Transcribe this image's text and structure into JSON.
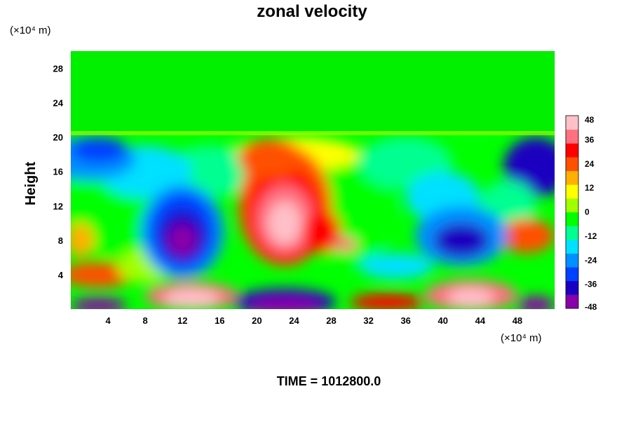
{
  "chart_data": {
    "type": "heatmap",
    "title": "zonal velocity",
    "ylabel": "Height",
    "x_unit_label": "(×10⁴ m)",
    "y_unit_label": "(×10⁴ m)",
    "footer": "TIME = 1012800.0",
    "xlim": [
      0,
      52
    ],
    "ylim": [
      0,
      30
    ],
    "x_ticks": [
      4,
      8,
      12,
      16,
      20,
      24,
      28,
      32,
      36,
      40,
      44,
      48
    ],
    "y_ticks": [
      4,
      8,
      12,
      16,
      20,
      24,
      28
    ],
    "colorbar": {
      "range": [
        -48,
        48
      ],
      "ticks": [
        48,
        36,
        24,
        12,
        0,
        -12,
        -24,
        -36,
        -48
      ],
      "colors": [
        "#8a00a8",
        "#1a00c0",
        "#0040ff",
        "#0090ff",
        "#00e0ff",
        "#00ff90",
        "#00ff00",
        "#a0ff00",
        "#ffff00",
        "#ffb000",
        "#ff5000",
        "#ff0000",
        "#ff7080",
        "#ffc0c8"
      ]
    },
    "background_value_above_20": -6,
    "features": [
      {
        "kind": "negative_core",
        "x": 12,
        "y": 8.5,
        "value": -48
      },
      {
        "kind": "negative_core",
        "x": 42,
        "y": 8,
        "value": -40
      },
      {
        "kind": "negative_core",
        "x": 50,
        "y": 16,
        "value": -38
      },
      {
        "kind": "negative_core",
        "x": 2,
        "y": 18,
        "value": -34
      },
      {
        "kind": "positive_core",
        "x": 23,
        "y": 10.5,
        "value": 44
      },
      {
        "kind": "positive_core",
        "x": 13,
        "y": 1.5,
        "value": 48
      },
      {
        "kind": "positive_core",
        "x": 43,
        "y": 1.5,
        "value": 46
      },
      {
        "kind": "negative_core",
        "x": 23,
        "y": 0.5,
        "value": -46
      },
      {
        "kind": "negative_core",
        "x": 3,
        "y": 0.3,
        "value": -46
      }
    ]
  }
}
